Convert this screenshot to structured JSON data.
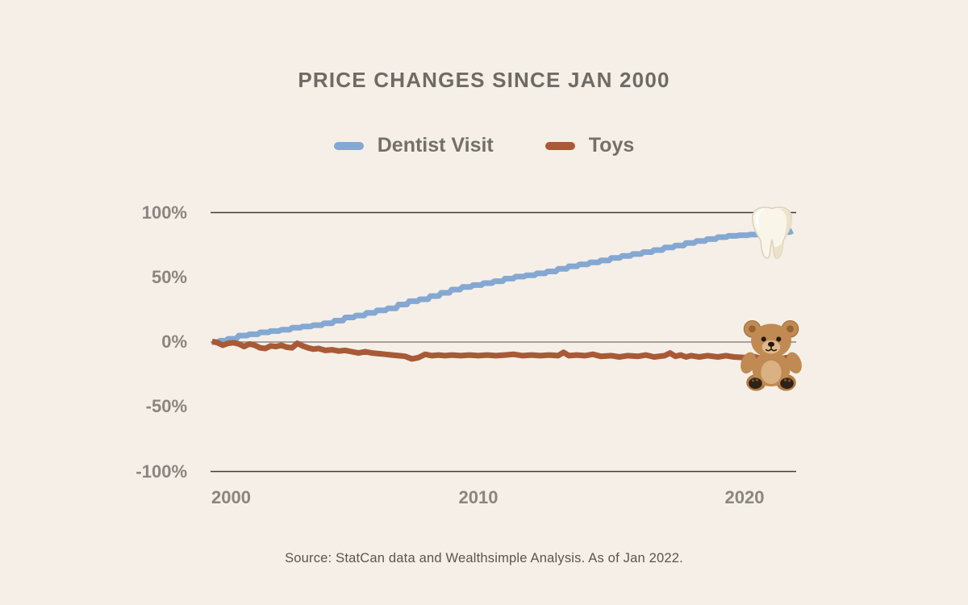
{
  "title": "PRICE CHANGES SINCE JAN 2000",
  "source": "Source: StatCan data and Wealthsimple Analysis. As of Jan 2022.",
  "colors": {
    "background": "#f5efe7",
    "title_text": "#6e6a65",
    "axis_text": "#8a857f",
    "outer_gridline": "#403c38",
    "zero_gridline": "#8b8781",
    "dentist_line": "#84a8d2",
    "toys_line": "#a85a36"
  },
  "legend": [
    {
      "label": "Dentist Visit",
      "color": "#84a8d2"
    },
    {
      "label": "Toys",
      "color": "#a85a36"
    }
  ],
  "chart_data": {
    "type": "line",
    "title": "PRICE CHANGES SINCE JAN 2000",
    "xlabel": "",
    "ylabel": "",
    "unit": "percent change since Jan 2000",
    "x_axis": {
      "range": [
        2000,
        2022
      ],
      "tick_labels": [
        "2000",
        "2010",
        "2020"
      ],
      "tick_values": [
        2000,
        2010,
        2020
      ]
    },
    "y_axis": {
      "range": [
        -100,
        100
      ],
      "ticks": [
        "100%",
        "50%",
        "0%",
        "-50%",
        "-100%"
      ],
      "tick_values": [
        100,
        50,
        0,
        -50,
        -100
      ]
    },
    "gridlines": [
      {
        "value": 100,
        "color": "#403c38"
      },
      {
        "value": 0,
        "color": "#8b8781"
      },
      {
        "value": -100,
        "color": "#403c38"
      }
    ],
    "legend_position": "top-center",
    "series": [
      {
        "name": "Dentist Visit",
        "color": "#84a8d2",
        "style": "step",
        "end_marker": "tooth-emoji",
        "end_value_pct": 86,
        "points": [
          [
            2000,
            0
          ],
          [
            2000.3,
            1
          ],
          [
            2000.6,
            2.5
          ],
          [
            2001,
            5
          ],
          [
            2001.4,
            6
          ],
          [
            2001.8,
            7.5
          ],
          [
            2002.2,
            8.5
          ],
          [
            2002.6,
            9.5
          ],
          [
            2003,
            11
          ],
          [
            2003.4,
            12
          ],
          [
            2003.8,
            13
          ],
          [
            2004.2,
            14.5
          ],
          [
            2004.6,
            16.5
          ],
          [
            2005,
            19
          ],
          [
            2005.4,
            20.5
          ],
          [
            2005.8,
            22.5
          ],
          [
            2006.2,
            24.5
          ],
          [
            2006.6,
            26
          ],
          [
            2007,
            29
          ],
          [
            2007.4,
            31.5
          ],
          [
            2007.8,
            33
          ],
          [
            2008.2,
            35.5
          ],
          [
            2008.6,
            38
          ],
          [
            2009,
            40.5
          ],
          [
            2009.4,
            42.5
          ],
          [
            2009.8,
            44
          ],
          [
            2010.2,
            45.5
          ],
          [
            2010.6,
            47
          ],
          [
            2011,
            49
          ],
          [
            2011.4,
            50.5
          ],
          [
            2011.8,
            51.5
          ],
          [
            2012.2,
            53
          ],
          [
            2012.6,
            54.5
          ],
          [
            2013,
            56.5
          ],
          [
            2013.4,
            58.5
          ],
          [
            2013.8,
            60
          ],
          [
            2014.2,
            61.5
          ],
          [
            2014.6,
            63
          ],
          [
            2015,
            65
          ],
          [
            2015.4,
            66.5
          ],
          [
            2015.8,
            68
          ],
          [
            2016.2,
            69.5
          ],
          [
            2016.6,
            71
          ],
          [
            2017,
            73
          ],
          [
            2017.4,
            74.5
          ],
          [
            2017.8,
            76.5
          ],
          [
            2018.2,
            78
          ],
          [
            2018.6,
            79.5
          ],
          [
            2019,
            81
          ],
          [
            2019.4,
            82
          ],
          [
            2019.8,
            82.5
          ],
          [
            2020.2,
            83
          ],
          [
            2020.6,
            83.5
          ],
          [
            2021,
            84
          ],
          [
            2021.4,
            85
          ],
          [
            2021.8,
            86
          ]
        ]
      },
      {
        "name": "Toys",
        "color": "#a85a36",
        "style": "linear",
        "end_marker": "teddy-bear-emoji",
        "end_value_pct": -13,
        "points": [
          [
            2000,
            0.5
          ],
          [
            2000.2,
            -0.5
          ],
          [
            2000.4,
            -2.5
          ],
          [
            2000.6,
            -1
          ],
          [
            2000.8,
            -0.5
          ],
          [
            2001,
            -1.5
          ],
          [
            2001.2,
            -3.5
          ],
          [
            2001.4,
            -1.5
          ],
          [
            2001.6,
            -2.5
          ],
          [
            2001.8,
            -4.5
          ],
          [
            2002,
            -5
          ],
          [
            2002.2,
            -3
          ],
          [
            2002.4,
            -3.5
          ],
          [
            2002.6,
            -2.5
          ],
          [
            2002.8,
            -4
          ],
          [
            2003,
            -4.5
          ],
          [
            2003.2,
            -1
          ],
          [
            2003.4,
            -3
          ],
          [
            2003.6,
            -4.5
          ],
          [
            2003.8,
            -5.5
          ],
          [
            2004,
            -5
          ],
          [
            2004.25,
            -6.5
          ],
          [
            2004.5,
            -6
          ],
          [
            2004.75,
            -7
          ],
          [
            2005,
            -6.5
          ],
          [
            2005.25,
            -7.5
          ],
          [
            2005.5,
            -8.5
          ],
          [
            2005.75,
            -7.5
          ],
          [
            2006,
            -8.5
          ],
          [
            2006.25,
            -9
          ],
          [
            2006.5,
            -9.5
          ],
          [
            2006.75,
            -10
          ],
          [
            2007,
            -10.5
          ],
          [
            2007.25,
            -11
          ],
          [
            2007.5,
            -13
          ],
          [
            2007.75,
            -12
          ],
          [
            2008,
            -9.5
          ],
          [
            2008.25,
            -10.5
          ],
          [
            2008.5,
            -10
          ],
          [
            2008.75,
            -10.5
          ],
          [
            2009,
            -10
          ],
          [
            2009.33,
            -10.5
          ],
          [
            2009.66,
            -10
          ],
          [
            2010,
            -10.5
          ],
          [
            2010.33,
            -10
          ],
          [
            2010.66,
            -10.5
          ],
          [
            2011,
            -10
          ],
          [
            2011.33,
            -9.5
          ],
          [
            2011.66,
            -10.5
          ],
          [
            2012,
            -10
          ],
          [
            2012.33,
            -10.5
          ],
          [
            2012.66,
            -10
          ],
          [
            2013,
            -10.5
          ],
          [
            2013.2,
            -8
          ],
          [
            2013.4,
            -10.5
          ],
          [
            2013.7,
            -10
          ],
          [
            2014,
            -10.5
          ],
          [
            2014.3,
            -9.5
          ],
          [
            2014.6,
            -11
          ],
          [
            2015,
            -10.5
          ],
          [
            2015.3,
            -11.5
          ],
          [
            2015.6,
            -10.5
          ],
          [
            2016,
            -11
          ],
          [
            2016.3,
            -10
          ],
          [
            2016.6,
            -11.5
          ],
          [
            2017,
            -10.5
          ],
          [
            2017.2,
            -8.5
          ],
          [
            2017.4,
            -11
          ],
          [
            2017.6,
            -10
          ],
          [
            2017.8,
            -11.5
          ],
          [
            2018,
            -10.5
          ],
          [
            2018.3,
            -11.5
          ],
          [
            2018.6,
            -10.5
          ],
          [
            2019,
            -11.5
          ],
          [
            2019.3,
            -10.5
          ],
          [
            2019.6,
            -11.5
          ],
          [
            2020,
            -12
          ],
          [
            2020.3,
            -11
          ],
          [
            2020.6,
            -12.5
          ],
          [
            2021,
            -12
          ],
          [
            2021.3,
            -13
          ],
          [
            2021.6,
            -12
          ],
          [
            2022,
            -13
          ]
        ]
      }
    ],
    "annotations": [
      {
        "icon": "tooth",
        "series": "Dentist Visit",
        "x": 2021.2,
        "y": 85
      },
      {
        "icon": "teddy-bear",
        "series": "Toys",
        "x": 2021.2,
        "y": -10
      }
    ]
  }
}
